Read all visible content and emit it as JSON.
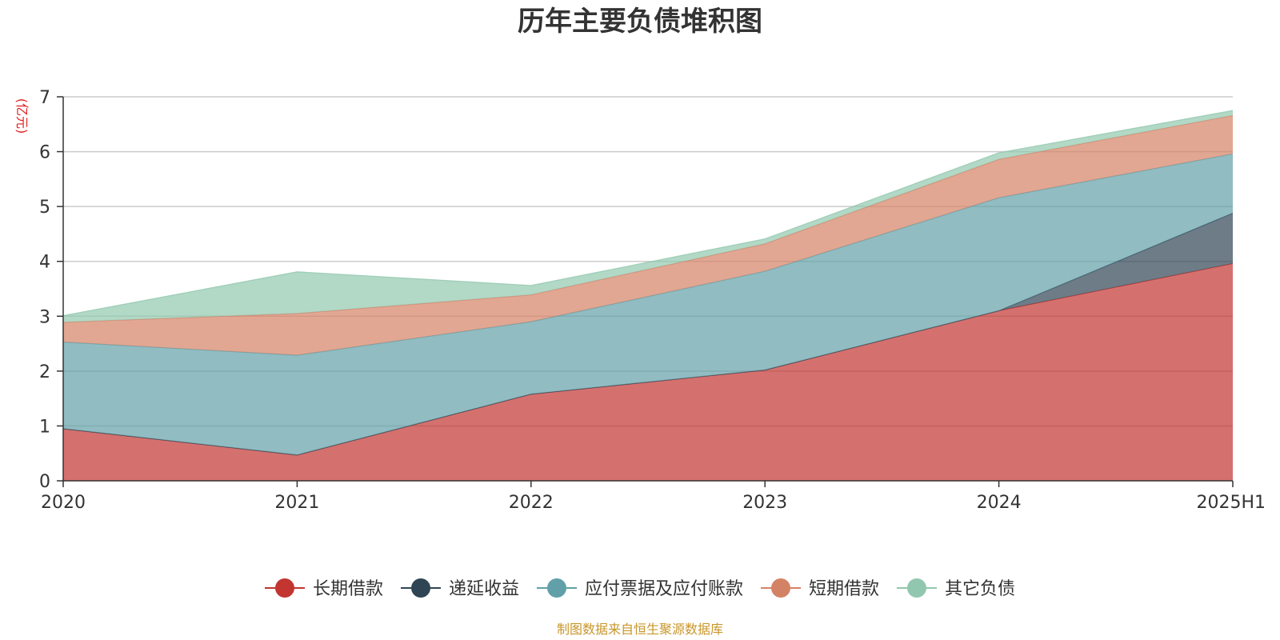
{
  "chart_data": {
    "type": "area",
    "stacked": true,
    "title": "历年主要负债堆积图",
    "unit": "(亿元)",
    "categories": [
      "2020",
      "2021",
      "2022",
      "2023",
      "2024",
      "2025H1"
    ],
    "ylim": [
      0,
      7
    ],
    "yticks": [
      0,
      1,
      2,
      3,
      4,
      5,
      6,
      7
    ],
    "grid": true,
    "legend_position": "bottom",
    "series": [
      {
        "name": "长期借款",
        "color": "#c23531",
        "values": [
          0.95,
          0.47,
          1.58,
          2.02,
          3.1,
          3.96
        ]
      },
      {
        "name": "递延收益",
        "color": "#2f4554",
        "values": [
          0.0,
          0.0,
          0.0,
          0.0,
          0.0,
          0.92
        ]
      },
      {
        "name": "应付票据及应付账款",
        "color": "#61a0a8",
        "values": [
          1.58,
          1.82,
          1.32,
          1.8,
          2.06,
          1.08
        ]
      },
      {
        "name": "短期借款",
        "color": "#d48265",
        "values": [
          0.36,
          0.76,
          0.49,
          0.5,
          0.7,
          0.7
        ]
      },
      {
        "name": "其它负债",
        "color": "#91c7ae",
        "values": [
          0.12,
          0.76,
          0.17,
          0.09,
          0.12,
          0.09
        ]
      }
    ]
  },
  "source": "制图数据来自恒生聚源数据库"
}
